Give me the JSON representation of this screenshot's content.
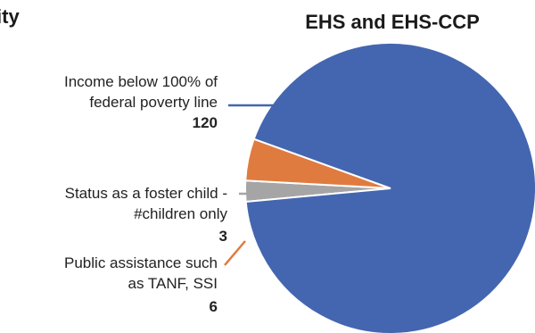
{
  "clipped_heading": "ity",
  "chart_data": {
    "type": "pie",
    "title": "EHS and EHS-CCP",
    "slices": [
      {
        "label_lines": [
          "Income below 100% of",
          "federal poverty line"
        ],
        "value": 120,
        "color": "#4466b0"
      },
      {
        "label_lines": [
          "Status as a foster child -",
          "#children only"
        ],
        "value": 3,
        "color": "#a5a5a5"
      },
      {
        "label_lines": [
          "Public assistance such",
          "as TANF, SSI"
        ],
        "value": 6,
        "color": "#e07b3f"
      }
    ]
  }
}
